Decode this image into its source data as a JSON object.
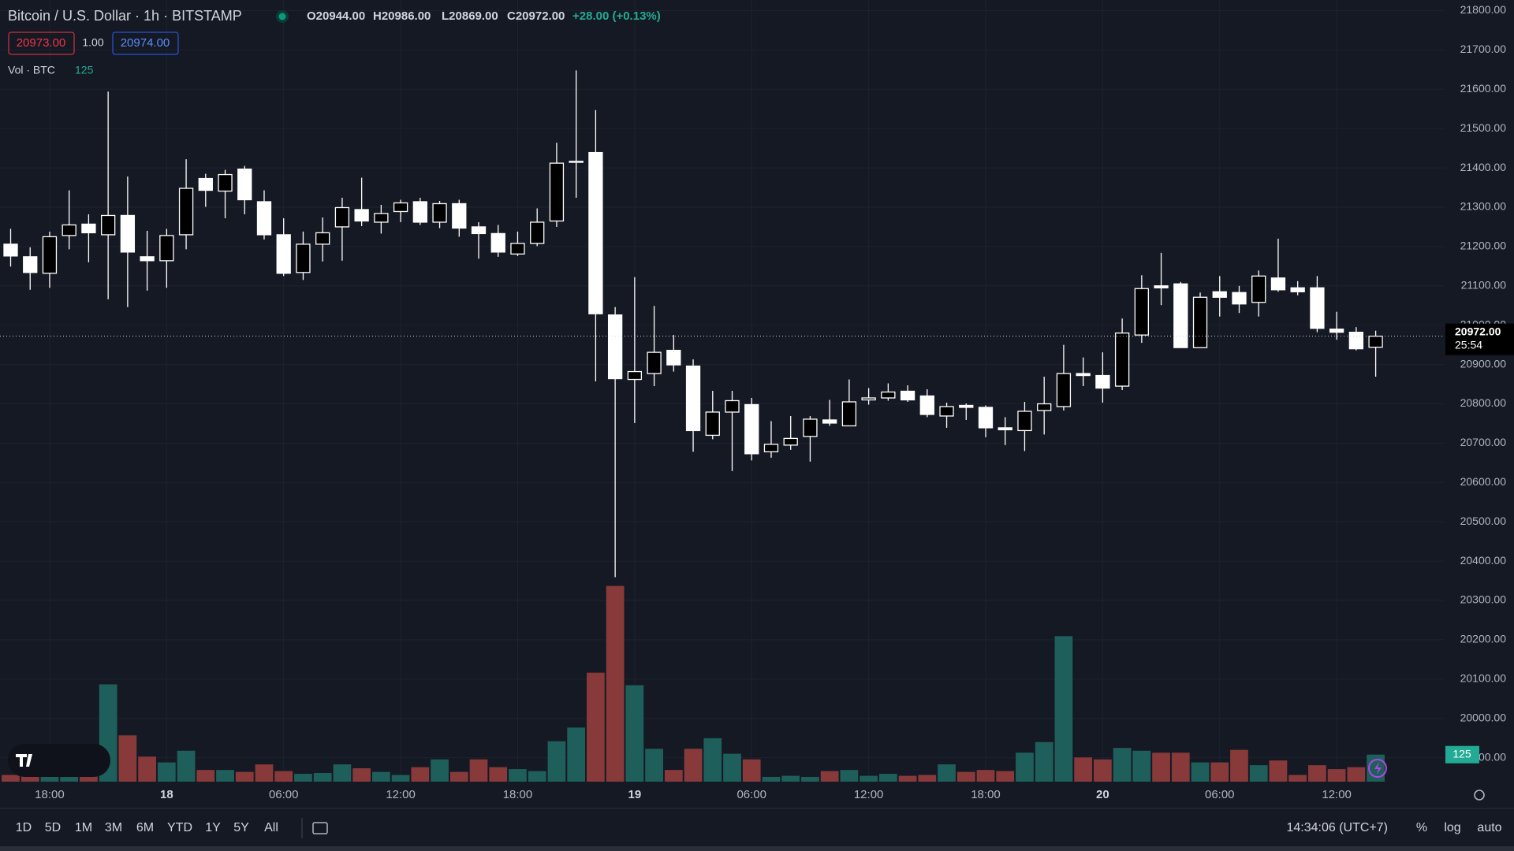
{
  "header": {
    "title": "Bitcoin / U.S. Dollar · 1h · BITSTAMP",
    "ohlc": [
      "O20944.00",
      "H20986.00",
      "L20869.00",
      "C20972.00",
      "+28.00 (+0.13%)"
    ],
    "bid": "20973.00",
    "spread": "1.00",
    "ask": "20974.00",
    "volume_title": "Vol · BTC"
  },
  "chart_data": {
    "type": "candlestick",
    "categories": [
      null,
      null,
      "18:00",
      null,
      null,
      null,
      null,
      null,
      "18",
      null,
      null,
      null,
      null,
      null,
      "06:00",
      null,
      null,
      null,
      null,
      null,
      "12:00",
      null,
      null,
      null,
      null,
      null,
      "18:00",
      null,
      null,
      null,
      null,
      null,
      "19",
      null,
      null,
      null,
      null,
      null,
      "06:00",
      null,
      null,
      null,
      null,
      null,
      "12:00",
      null,
      null,
      null,
      null,
      null,
      "18:00",
      null,
      null,
      null,
      null,
      null,
      "20",
      null,
      null,
      null,
      null,
      null,
      "06:00",
      null,
      null,
      null,
      null,
      null,
      "12:00",
      null,
      null
    ],
    "open": [
      21206,
      21174,
      21132,
      21228,
      21257,
      21230,
      21279,
      21174,
      21164,
      21230,
      21373,
      21341,
      21397,
      21314,
      21230,
      21134,
      21206,
      21250,
      21294,
      21262,
      21289,
      21314,
      21262,
      21309,
      21250,
      21233,
      21181,
      21208,
      21265,
      21415,
      21439,
      21026,
      20862,
      20877,
      20936,
      20896,
      20720,
      20779,
      20798,
      20678,
      20695,
      20717,
      20759,
      20744,
      20810,
      20815,
      20832,
      20820,
      20769,
      20796,
      20791,
      20739,
      20732,
      20783,
      20793,
      20877,
      20872,
      20845,
      20975,
      21100,
      21105,
      20943,
      21085,
      21083,
      21058,
      21120,
      21095,
      21095,
      20990,
      20982,
      20944
    ],
    "high": [
      21245,
      21198,
      21238,
      21343,
      21282,
      21594,
      21378,
      21240,
      21245,
      21422,
      21385,
      21395,
      21405,
      21343,
      21272,
      21238,
      21274,
      21324,
      21375,
      21306,
      21319,
      21324,
      21316,
      21319,
      21262,
      21255,
      21238,
      21297,
      21464,
      21648,
      21547,
      21046,
      21122,
      21049,
      20975,
      20913,
      20833,
      20833,
      20815,
      20756,
      20769,
      20769,
      20810,
      20862,
      20840,
      20852,
      20847,
      20837,
      20803,
      20801,
      20796,
      20766,
      20805,
      20869,
      20950,
      20918,
      20931,
      21017,
      21127,
      21184,
      21110,
      21083,
      21125,
      21100,
      21139,
      21220,
      21112,
      21125,
      21034,
      20995,
      20986
    ],
    "low": [
      21149,
      21090,
      21095,
      21193,
      21160,
      21066,
      21046,
      21088,
      21095,
      21193,
      21301,
      21272,
      21282,
      21218,
      21125,
      21115,
      21162,
      21164,
      21252,
      21233,
      21262,
      21255,
      21247,
      21225,
      21169,
      21174,
      21176,
      21201,
      21250,
      21324,
      20857,
      20359,
      20751,
      20845,
      20882,
      20678,
      20710,
      20629,
      20656,
      20663,
      20683,
      20653,
      20744,
      20744,
      20798,
      20808,
      20805,
      20766,
      20739,
      20759,
      20715,
      20695,
      20680,
      20722,
      20783,
      20845,
      20803,
      20835,
      20955,
      21051,
      20943,
      20943,
      21022,
      21031,
      21022,
      21085,
      21076,
      20982,
      20963,
      20936,
      20869
    ],
    "close": [
      21176,
      21134,
      21225,
      21255,
      21235,
      21279,
      21186,
      21164,
      21228,
      21348,
      21343,
      21383,
      21319,
      21230,
      21132,
      21206,
      21235,
      21299,
      21265,
      21284,
      21311,
      21262,
      21309,
      21247,
      21233,
      21186,
      21208,
      21262,
      21412,
      21417,
      21029,
      20864,
      20882,
      20931,
      20899,
      20732,
      20779,
      20808,
      20673,
      20697,
      20712,
      20761,
      20751,
      20805,
      20815,
      20830,
      20810,
      20773,
      20793,
      20791,
      20739,
      20734,
      20781,
      20800,
      20877,
      20872,
      20840,
      20980,
      21093,
      21095,
      20943,
      21071,
      21071,
      21054,
      21125,
      21090,
      21085,
      20992,
      20982,
      20940,
      20972
    ],
    "volume": [
      31,
      31,
      31,
      45,
      31,
      450,
      214,
      116,
      89,
      143,
      54,
      54,
      45,
      80,
      49,
      36,
      40,
      80,
      62,
      45,
      31,
      67,
      103,
      45,
      103,
      67,
      58,
      49,
      187,
      250,
      504,
      905,
      446,
      152,
      54,
      152,
      201,
      129,
      103,
      22,
      27,
      22,
      49,
      54,
      27,
      36,
      27,
      31,
      80,
      45,
      54,
      49,
      134,
      183,
      673,
      112,
      103,
      156,
      143,
      134,
      134,
      89,
      89,
      147,
      76,
      98,
      31,
      76,
      58,
      67,
      125
    ],
    "up_color": "#000000",
    "down_color": "#ffffff",
    "wick_color": "#ffffff",
    "up_volume_color": "#1e5f5c",
    "down_volume_color": "#883a3b",
    "ylim": [
      19803,
      21827
    ],
    "yticks": [
      {
        "value": 19900,
        "label": "19900.00"
      },
      {
        "value": 20000,
        "label": "20000.00"
      },
      {
        "value": 20100,
        "label": "20100.00"
      },
      {
        "value": 20200,
        "label": "20200.00"
      },
      {
        "value": 20300,
        "label": "20300.00"
      },
      {
        "value": 20400,
        "label": "20400.00"
      },
      {
        "value": 20500,
        "label": "20500.00"
      },
      {
        "value": 20600,
        "label": "20600.00"
      },
      {
        "value": 20700,
        "label": "20700.00"
      },
      {
        "value": 20800,
        "label": "20800.00"
      },
      {
        "value": 20900,
        "label": "20900.00"
      },
      {
        "value": 21000,
        "label": "21000.00"
      },
      {
        "value": 21100,
        "label": "21100.00"
      },
      {
        "value": 21200,
        "label": "21200.00"
      },
      {
        "value": 21300,
        "label": "21300.00"
      },
      {
        "value": 21400,
        "label": "21400.00"
      },
      {
        "value": 21500,
        "label": "21500.00"
      },
      {
        "value": 21600,
        "label": "21600.00"
      },
      {
        "value": 21700,
        "label": "21700.00"
      },
      {
        "value": 21800,
        "label": "21800.00"
      }
    ],
    "y2lim": [
      0,
      1800
    ],
    "grid": true,
    "last_price_label": "20972.00",
    "countdown": "25:54"
  },
  "toolbar": {
    "ranges": [
      "1D",
      "5D",
      "1M",
      "3M",
      "6M",
      "YTD",
      "1Y",
      "5Y",
      "All"
    ],
    "clock": "14:34:06 (UTC+7)",
    "options": [
      "%",
      "log",
      "auto"
    ]
  }
}
